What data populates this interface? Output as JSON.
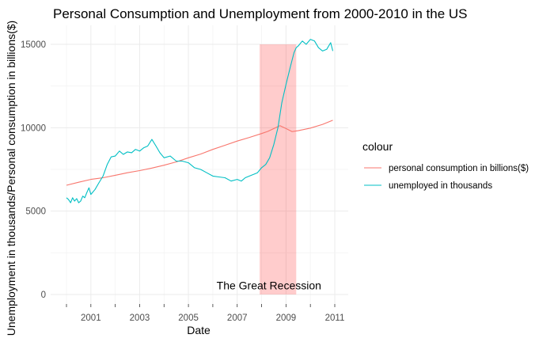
{
  "chart_data": {
    "type": "line",
    "title": "Personal Consumption and Unemployment from 2000-2010 in the US",
    "xlabel": "Date",
    "ylabel": "Unemployment in thousands/Personal consumption in billions($)",
    "xlim": [
      2000.0,
      2011.0
    ],
    "ylim": [
      0,
      15500
    ],
    "x_ticks": [
      2001,
      2003,
      2005,
      2007,
      2009,
      2011
    ],
    "y_ticks": [
      0,
      5000,
      10000,
      15000
    ],
    "grid": true,
    "legend": {
      "title": "colour",
      "placement": "right"
    },
    "series": [
      {
        "name": "personal consumption in billions($)",
        "color": "#F8766D",
        "x": [
          2000.0,
          2000.5,
          2001.0,
          2001.5,
          2002.0,
          2002.5,
          2003.0,
          2003.5,
          2004.0,
          2004.5,
          2005.0,
          2005.5,
          2006.0,
          2006.5,
          2007.0,
          2007.5,
          2008.0,
          2008.25,
          2008.5,
          2008.75,
          2009.0,
          2009.25,
          2009.5,
          2010.0,
          2010.5,
          2010.92
        ],
        "y": [
          6550,
          6730,
          6900,
          7000,
          7150,
          7300,
          7430,
          7580,
          7750,
          7950,
          8200,
          8420,
          8700,
          8950,
          9200,
          9420,
          9650,
          9780,
          9950,
          10120,
          9950,
          9770,
          9820,
          9980,
          10200,
          10450
        ]
      },
      {
        "name": "unemployed in thousands",
        "color": "#00BFC4",
        "x": [
          2000.0,
          2000.08,
          2000.17,
          2000.25,
          2000.33,
          2000.42,
          2000.5,
          2000.58,
          2000.67,
          2000.75,
          2000.83,
          2000.92,
          2001.0,
          2001.17,
          2001.33,
          2001.5,
          2001.67,
          2001.83,
          2002.0,
          2002.17,
          2002.33,
          2002.5,
          2002.67,
          2002.83,
          2003.0,
          2003.17,
          2003.33,
          2003.5,
          2003.67,
          2003.83,
          2004.0,
          2004.25,
          2004.5,
          2004.75,
          2005.0,
          2005.25,
          2005.5,
          2005.75,
          2006.0,
          2006.25,
          2006.5,
          2006.75,
          2007.0,
          2007.17,
          2007.33,
          2007.5,
          2007.67,
          2007.83,
          2008.0,
          2008.17,
          2008.33,
          2008.5,
          2008.67,
          2008.83,
          2009.0,
          2009.17,
          2009.33,
          2009.42,
          2009.5,
          2009.67,
          2009.83,
          2010.0,
          2010.17,
          2010.33,
          2010.5,
          2010.67,
          2010.83,
          2010.92
        ],
        "y": [
          5800,
          5700,
          5500,
          5800,
          5600,
          5750,
          5500,
          5600,
          5900,
          5800,
          6100,
          6400,
          6000,
          6300,
          6700,
          7100,
          7800,
          8250,
          8300,
          8600,
          8400,
          8550,
          8500,
          8700,
          8600,
          8800,
          8900,
          9300,
          8900,
          8500,
          8200,
          8300,
          8000,
          8000,
          7900,
          7600,
          7500,
          7300,
          7100,
          7050,
          7000,
          6800,
          6900,
          6800,
          7000,
          7100,
          7200,
          7300,
          7600,
          7800,
          8200,
          9000,
          10000,
          11500,
          12600,
          13600,
          14500,
          14800,
          14900,
          15200,
          15000,
          15300,
          15200,
          14800,
          14600,
          14700,
          15100,
          14600
        ]
      }
    ],
    "annotations": [
      {
        "type": "rect",
        "xmin": 2007.92,
        "xmax": 2009.42,
        "fill": "#FF0000",
        "alpha": 0.2
      },
      {
        "type": "text",
        "text": "The Great Recession",
        "x": 2008.3,
        "y": 550
      }
    ]
  }
}
